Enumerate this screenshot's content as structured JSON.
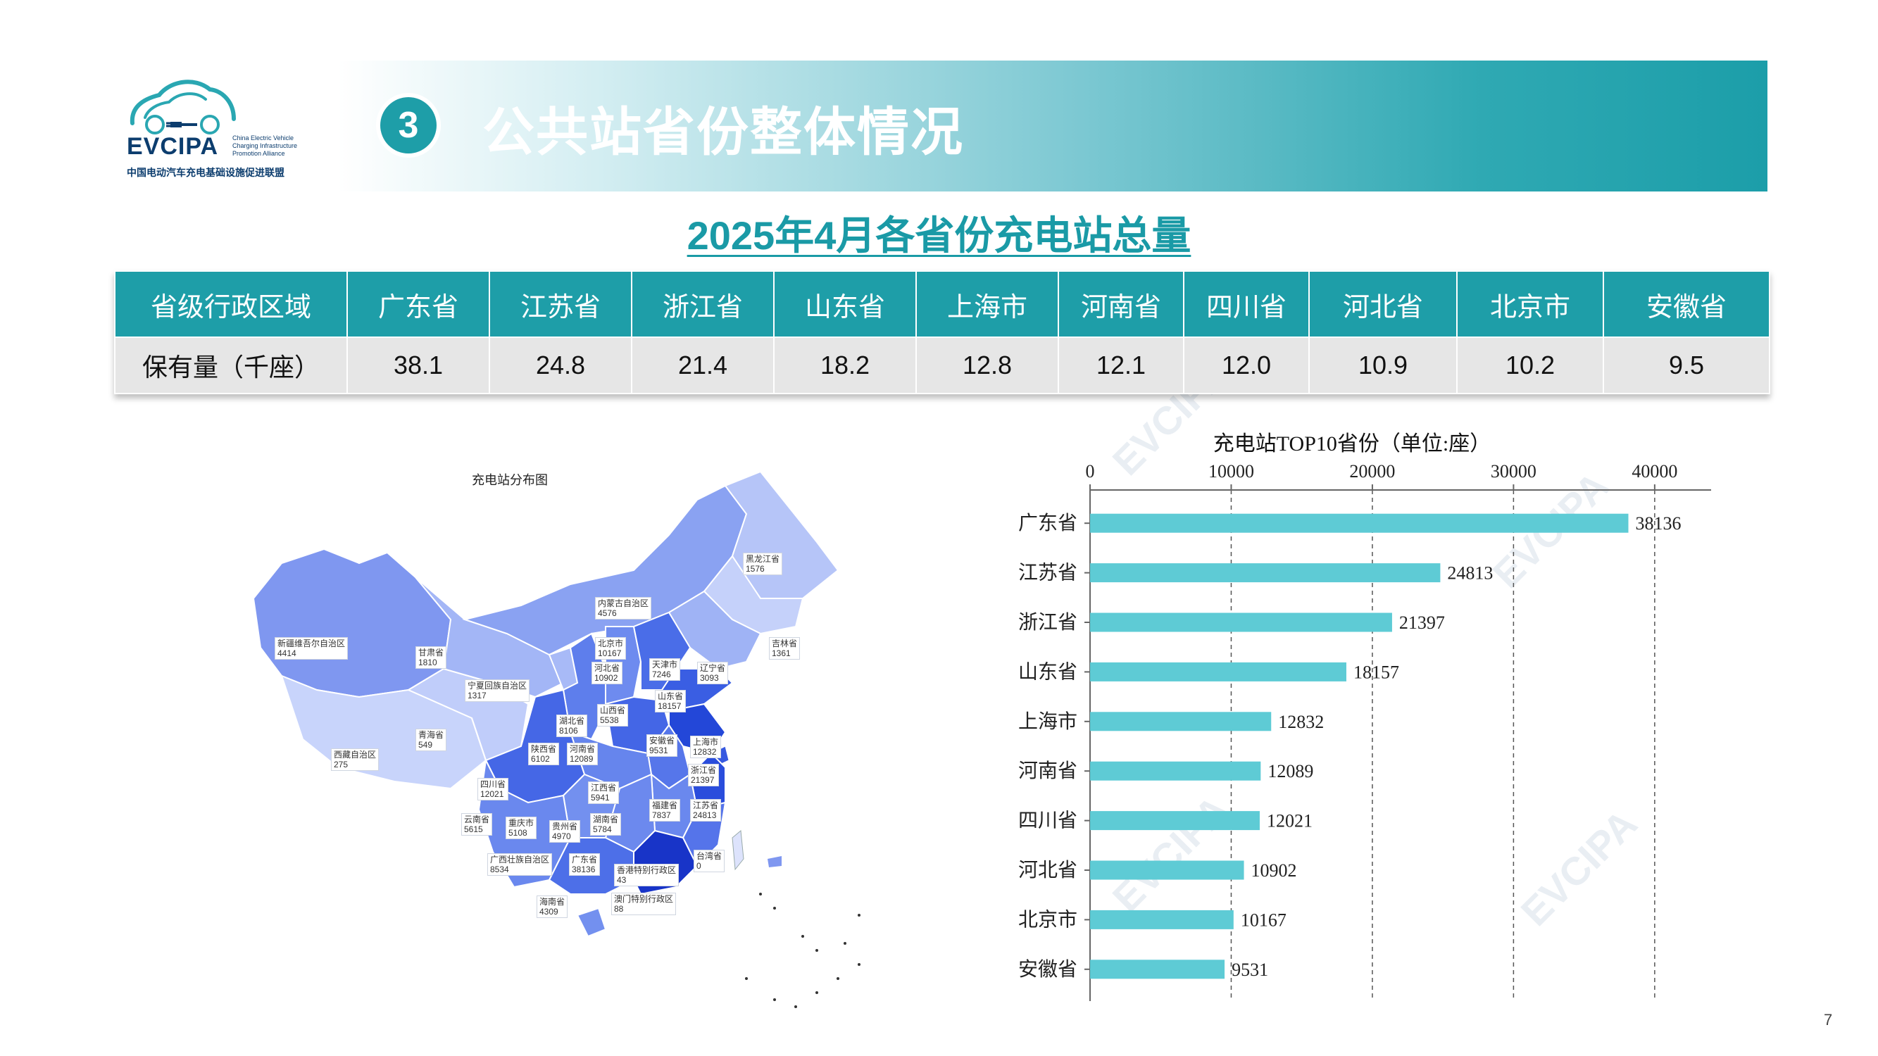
{
  "logo": {
    "brand": "EVCIPA",
    "en_line1": "China Electric Vehicle",
    "en_line2": "Charging Infrastructure",
    "en_line3": "Promotion Alliance",
    "cn": "中国电动汽车充电基础设施促进联盟"
  },
  "header": {
    "number": "3",
    "title": "公共站省份整体情况"
  },
  "subtitle": "2025年4月各省份充电站总量",
  "table": {
    "header_label": "省级行政区域",
    "row_label": "保有量（千座）",
    "provinces": [
      "广东省",
      "江苏省",
      "浙江省",
      "山东省",
      "上海市",
      "河南省",
      "四川省",
      "河北省",
      "北京市",
      "安徽省"
    ],
    "values": [
      "38.1",
      "24.8",
      "21.4",
      "18.2",
      "12.8",
      "12.1",
      "12.0",
      "10.9",
      "10.2",
      "9.5"
    ]
  },
  "map": {
    "title": "充电站分布图",
    "labels": [
      {
        "name": "黑龙江省",
        "value": "1576"
      },
      {
        "name": "吉林省",
        "value": "1361"
      },
      {
        "name": "辽宁省",
        "value": "3093"
      },
      {
        "name": "内蒙古自治区",
        "value": "4576"
      },
      {
        "name": "北京市",
        "value": "10167"
      },
      {
        "name": "天津市",
        "value": "7246"
      },
      {
        "name": "河北省",
        "value": "10902"
      },
      {
        "name": "山东省",
        "value": "18157"
      },
      {
        "name": "新疆维吾尔自治区",
        "value": "4414"
      },
      {
        "name": "甘肃省",
        "value": "1810"
      },
      {
        "name": "宁夏回族自治区",
        "value": "1317"
      },
      {
        "name": "山西省",
        "value": "5538"
      },
      {
        "name": "湖北省",
        "value": "8106"
      },
      {
        "name": "青海省",
        "value": "549"
      },
      {
        "name": "西藏自治区",
        "value": "275"
      },
      {
        "name": "陕西省",
        "value": "6102"
      },
      {
        "name": "河南省",
        "value": "12089"
      },
      {
        "name": "安徽省",
        "value": "9531"
      },
      {
        "name": "上海市",
        "value": "12832"
      },
      {
        "name": "浙江省",
        "value": "21397"
      },
      {
        "name": "四川省",
        "value": "12021"
      },
      {
        "name": "江西省",
        "value": "5941"
      },
      {
        "name": "福建省",
        "value": "7837"
      },
      {
        "name": "江苏省",
        "value": "24813"
      },
      {
        "name": "云南省",
        "value": "5615"
      },
      {
        "name": "重庆市",
        "value": "5108"
      },
      {
        "name": "贵州省",
        "value": "4970"
      },
      {
        "name": "湖南省",
        "value": "5784"
      },
      {
        "name": "广西壮族自治区",
        "value": "8534"
      },
      {
        "name": "广东省",
        "value": "38136"
      },
      {
        "name": "台湾省",
        "value": "0"
      },
      {
        "name": "香港特别行政区",
        "value": "43"
      },
      {
        "name": "澳门特别行政区",
        "value": "88"
      },
      {
        "name": "海南省",
        "value": "4309"
      }
    ]
  },
  "chart_data": {
    "type": "bar",
    "orientation": "horizontal",
    "title": "充电站TOP10省份（单位:座）",
    "categories": [
      "广东省",
      "江苏省",
      "浙江省",
      "山东省",
      "上海市",
      "河南省",
      "四川省",
      "河北省",
      "北京市",
      "安徽省"
    ],
    "values": [
      38136,
      24813,
      21397,
      18157,
      12832,
      12089,
      12021,
      10902,
      10167,
      9531
    ],
    "xlim": [
      0,
      43000
    ],
    "xticks": [
      0,
      10000,
      20000,
      30000,
      40000
    ],
    "xaxis_position": "top",
    "grid": "dashed vertical",
    "bar_color": "#5ecbd5"
  },
  "page_number": "7"
}
